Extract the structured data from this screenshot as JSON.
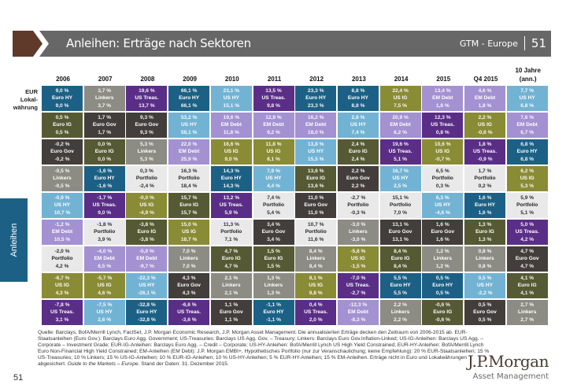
{
  "header": {
    "title": "Anleihen: Erträge nach Sektoren",
    "series_label": "GTM - Europe",
    "page": "51"
  },
  "side_tab": "Anleihen",
  "row_label": [
    "EUR",
    "Lokal-",
    "währung"
  ],
  "colors": {
    "Euro HY": "#1c6185",
    "Linkers": "#8c8c85",
    "US Treas.": "#5a2e86",
    "US HY": "#72b3d3",
    "Euro IG": "#565a34",
    "Euro Gov": "#433e3b",
    "EM Debt": "#a391d1",
    "US IG": "#8a8b35",
    "Portfolio": "#e9e9e9"
  },
  "chart_data": {
    "type": "table",
    "title": "Anleihen: Erträge nach Sektoren",
    "columns": [
      "2006",
      "2007",
      "2008",
      "2009",
      "2010",
      "2011",
      "2012",
      "2013",
      "2014",
      "2015",
      "Q4 2015",
      "10 Jahre (ann.)"
    ],
    "note": "Each cell: EUR return (top), sector, local-currency return (bottom). Columns ranked high to low by EUR return.",
    "cells": [
      [
        {
          "eur": "9,0 %",
          "sector": "Euro HY",
          "local": "9,0 %"
        },
        {
          "eur": "0,5 %",
          "sector": "Euro IG",
          "local": "0,5 %"
        },
        {
          "eur": "-0,2 %",
          "sector": "Euro Gov",
          "local": "-0,2 %"
        },
        {
          "eur": "-0,5 %",
          "sector": "Linkers",
          "local": "-0,5 %"
        },
        {
          "eur": "-0,9 %",
          "sector": "US HY",
          "local": "10,7 %"
        },
        {
          "eur": "-1,2 %",
          "sector": "EM Debt",
          "local": "10,5 %"
        },
        {
          "eur": "-2,0 %",
          "sector": "Portfolio",
          "local": "4,2 %"
        },
        {
          "eur": "-6,7 %",
          "sector": "US IG",
          "local": "4,3 %"
        },
        {
          "eur": "-7,8 %",
          "sector": "US Treas.",
          "local": "3,1 %"
        }
      ],
      [
        {
          "eur": "3,7 %",
          "sector": "Linkers",
          "local": "3,7 %"
        },
        {
          "eur": "1,7 %",
          "sector": "Euro Gov",
          "local": "1,7 %"
        },
        {
          "eur": "0,0 %",
          "sector": "Euro IG",
          "local": "0,0 %"
        },
        {
          "eur": "-1,6 %",
          "sector": "Euro HY",
          "local": "-1,6 %"
        },
        {
          "eur": "-1,7 %",
          "sector": "US Treas.",
          "local": "9,0 %"
        },
        {
          "eur": "-1,8 %",
          "sector": "Portfolio",
          "local": "3,9 %"
        },
        {
          "eur": "-4,0 %",
          "sector": "EM Debt",
          "local": "6,5 %"
        },
        {
          "eur": "-5,7 %",
          "sector": "US IG",
          "local": "4,6 %"
        },
        {
          "eur": "-7,5 %",
          "sector": "US HY",
          "local": "2,6 %"
        }
      ],
      [
        {
          "eur": "19,6 %",
          "sector": "US Treas.",
          "local": "13,7 %"
        },
        {
          "eur": "9,3 %",
          "sector": "Euro Gov",
          "local": "9,3 %"
        },
        {
          "eur": "5,3 %",
          "sector": "Linkers",
          "local": "5,3 %"
        },
        {
          "eur": "0,3 %",
          "sector": "Portfolio",
          "local": "-2,4 %"
        },
        {
          "eur": "-0,0 %",
          "sector": "US IG",
          "local": "-4,9 %"
        },
        {
          "eur": "-3,8 %",
          "sector": "Euro IG",
          "local": "-3,8 %"
        },
        {
          "eur": "-5,0 %",
          "sector": "EM Debt",
          "local": "-9,7 %"
        },
        {
          "eur": "-22,3 %",
          "sector": "US HY",
          "local": "-26,1 %"
        },
        {
          "eur": "-32,8 %",
          "sector": "Euro HY",
          "local": "-32,8 %"
        }
      ],
      [
        {
          "eur": "66,1 %",
          "sector": "Euro HY",
          "local": "66,1 %"
        },
        {
          "eur": "53,2 %",
          "sector": "US HY",
          "local": "58,1 %"
        },
        {
          "eur": "22,0 %",
          "sector": "EM Debt",
          "local": "25,9 %"
        },
        {
          "eur": "16,3 %",
          "sector": "Portfolio",
          "local": "18,4 %"
        },
        {
          "eur": "15,7 %",
          "sector": "Euro IG",
          "local": "15,7 %"
        },
        {
          "eur": "15,0 %",
          "sector": "US IG",
          "local": "18,7 %"
        },
        {
          "eur": "7,0 %",
          "sector": "Linkers",
          "local": "7,0 %"
        },
        {
          "eur": "4,3 %",
          "sector": "Euro Gov",
          "local": "4,3 %"
        },
        {
          "eur": "-6,6 %",
          "sector": "US Treas.",
          "local": "-3,6 %"
        }
      ],
      [
        {
          "eur": "23,1 %",
          "sector": "US HY",
          "local": "15,1 %"
        },
        {
          "eur": "19,6 %",
          "sector": "EM Debt",
          "local": "11,8 %"
        },
        {
          "eur": "16,6 %",
          "sector": "US IG",
          "local": "9,0 %"
        },
        {
          "eur": "14,3 %",
          "sector": "Euro HY",
          "local": "14,3 %"
        },
        {
          "eur": "13,2 %",
          "sector": "US Treas.",
          "local": "5,9 %"
        },
        {
          "eur": "11,3 %",
          "sector": "Portfolio",
          "local": "7,1 %"
        },
        {
          "eur": "4,7 %",
          "sector": "Euro IG",
          "local": "4,7 %"
        },
        {
          "eur": "2,1 %",
          "sector": "Linkers",
          "local": "2,1 %"
        },
        {
          "eur": "1,1 %",
          "sector": "Euro Gov",
          "local": "1,1 %"
        }
      ],
      [
        {
          "eur": "13,5 %",
          "sector": "US Treas.",
          "local": "9,8 %"
        },
        {
          "eur": "12,9 %",
          "sector": "EM Debt",
          "local": "9,2 %"
        },
        {
          "eur": "11,8 %",
          "sector": "US IG",
          "local": "8,1 %"
        },
        {
          "eur": "7,9 %",
          "sector": "US HY",
          "local": "4,4 %"
        },
        {
          "eur": "7,4 %",
          "sector": "Portfolio",
          "local": "5,4 %"
        },
        {
          "eur": "3,4 %",
          "sector": "Euro Gov",
          "local": "3,4 %"
        },
        {
          "eur": "1,5 %",
          "sector": "Euro IG",
          "local": "1,5 %"
        },
        {
          "eur": "1,3 %",
          "sector": "Linkers",
          "local": "1,3 %"
        },
        {
          "eur": "-1,1 %",
          "sector": "Euro HY",
          "local": "-1,1 %"
        }
      ],
      [
        {
          "eur": "23,3 %",
          "sector": "Euro HY",
          "local": "23,3 %"
        },
        {
          "eur": "16,2 %",
          "sector": "EM Debt",
          "local": "18,0 %"
        },
        {
          "eur": "13,8 %",
          "sector": "US HY",
          "local": "15,5 %"
        },
        {
          "eur": "13,6 %",
          "sector": "Euro IG",
          "local": "13,6 %"
        },
        {
          "eur": "11,0 %",
          "sector": "Euro Gov",
          "local": "11,0 %"
        },
        {
          "eur": "10,7 %",
          "sector": "Portfolio",
          "local": "11,6 %"
        },
        {
          "eur": "8,4 %",
          "sector": "Linkers",
          "local": "8,4 %"
        },
        {
          "eur": "8,1 %",
          "sector": "US IG",
          "local": "9,8 %"
        },
        {
          "eur": "0,4 %",
          "sector": "US Treas.",
          "local": "2,0 %"
        }
      ],
      [
        {
          "eur": "8,8 %",
          "sector": "Euro HY",
          "local": "8,8 %"
        },
        {
          "eur": "2,8 %",
          "sector": "US HY",
          "local": "7,4 %"
        },
        {
          "eur": "2,4 %",
          "sector": "Euro IG",
          "local": "2,4 %"
        },
        {
          "eur": "2,2 %",
          "sector": "Euro Gov",
          "local": "2,2 %"
        },
        {
          "eur": "-2,7 %",
          "sector": "Portfolio",
          "local": "-0,3 %"
        },
        {
          "eur": "-3,0 %",
          "sector": "Linkers",
          "local": "-3,0 %"
        },
        {
          "eur": "-5,8 %",
          "sector": "US IG",
          "local": "-1,5 %"
        },
        {
          "eur": "-7,0 %",
          "sector": "US Treas.",
          "local": "-2,7 %"
        },
        {
          "eur": "-12,3 %",
          "sector": "EM Debt",
          "local": "-8,3 %"
        }
      ],
      [
        {
          "eur": "22,4 %",
          "sector": "US IG",
          "local": "7,5 %"
        },
        {
          "eur": "20,9 %",
          "sector": "EM Debt",
          "local": "6,2 %"
        },
        {
          "eur": "19,6 %",
          "sector": "US Treas.",
          "local": "5,1 %"
        },
        {
          "eur": "16,7 %",
          "sector": "US HY",
          "local": "2,5 %"
        },
        {
          "eur": "15,1 %",
          "sector": "Portfolio",
          "local": "7,0 %"
        },
        {
          "eur": "13,1 %",
          "sector": "Euro Gov",
          "local": "13,1 %"
        },
        {
          "eur": "8,4 %",
          "sector": "Euro IG",
          "local": "8,4 %"
        },
        {
          "eur": "5,5 %",
          "sector": "Euro HY",
          "local": "5,5 %"
        },
        {
          "eur": "2,2 %",
          "sector": "Linkers",
          "local": "2,2 %"
        }
      ],
      [
        {
          "eur": "13,4 %",
          "sector": "EM Debt",
          "local": "1,8 %"
        },
        {
          "eur": "12,3 %",
          "sector": "US Treas.",
          "local": "0,8 %"
        },
        {
          "eur": "10,6 %",
          "sector": "US IG",
          "local": "-0,7 %"
        },
        {
          "eur": "6,5 %",
          "sector": "Portfolio",
          "local": "0,3 %"
        },
        {
          "eur": "6,3 %",
          "sector": "US HY",
          "local": "-4,6 %"
        },
        {
          "eur": "1,6 %",
          "sector": "Euro Gov",
          "local": "1,6 %"
        },
        {
          "eur": "1,2 %",
          "sector": "Linkers",
          "local": "1,2 %"
        },
        {
          "eur": "0,5 %",
          "sector": "Euro HY",
          "local": "0,5 %"
        },
        {
          "eur": "-0,6 %",
          "sector": "Euro IG",
          "local": "-0,6 %"
        }
      ],
      [
        {
          "eur": "4,6 %",
          "sector": "EM Debt",
          "local": "1,8 %"
        },
        {
          "eur": "2,2 %",
          "sector": "US IG",
          "local": "-0,6 %"
        },
        {
          "eur": "1,8 %",
          "sector": "US Treas.",
          "local": "-0,9 %"
        },
        {
          "eur": "1,7 %",
          "sector": "Portfolio",
          "local": "0,2 %"
        },
        {
          "eur": "1,6 %",
          "sector": "Euro HY",
          "local": "1,6 %"
        },
        {
          "eur": "1,3 %",
          "sector": "Euro IG",
          "local": "1,3 %"
        },
        {
          "eur": "0,8 %",
          "sector": "Linkers",
          "local": "0,8 %"
        },
        {
          "eur": "0,5 %",
          "sector": "US HY",
          "local": "-2,2 %"
        },
        {
          "eur": "0,5 %",
          "sector": "Euro Gov",
          "local": "0,5 %"
        }
      ],
      [
        {
          "eur": "7,7 %",
          "sector": "US HY",
          "local": "6,8 %"
        },
        {
          "eur": "7,6 %",
          "sector": "EM Debt",
          "local": "6,7 %"
        },
        {
          "eur": "6,8 %",
          "sector": "Euro HY",
          "local": "6,8 %"
        },
        {
          "eur": "6,2 %",
          "sector": "US IG",
          "local": "5,3 %"
        },
        {
          "eur": "5,9 %",
          "sector": "Portfolio",
          "local": "5,1 %"
        },
        {
          "eur": "5,0 %",
          "sector": "US Treas.",
          "local": "4,2 %"
        },
        {
          "eur": "4,7 %",
          "sector": "Euro Gov",
          "local": "4,7 %"
        },
        {
          "eur": "4,1 %",
          "sector": "Euro IG",
          "local": "4,1 %"
        },
        {
          "eur": "2,7 %",
          "sector": "Linkers",
          "local": "2,7 %"
        }
      ]
    ]
  },
  "footer": {
    "text_main": "Quelle: Barclays, BofA/Merrill Lynch, FactSet, J.P. Morgan Economic Research, J.P. Morgan Asset Management. Die annualisierten Erträge decken den Zeitraum von 2006-2015 ab. EUR-Staatsanleihen (Euro Gov.): Barclays Euro Agg. Government; US-Treasuries: Barclays US Agg. Gov. – Treasury; Linkers: Barclays Euro Gov.Inflation-Linked; US-IG-Anleihen: Barclays US Agg. – Corporate – Investment Grade; EUR-IG-Anleihen: Barclays Euro Agg. – Credit – Corporate; US-HY-Anleihen: BofA/Merrill Lynch US High Yield Constrained; EUR-HY-Anleihen: BofA/Merrill Lynch Euro Non-Financial High Yield Constrained; EM-Anleihen (EM Debt): J.P. Morgan EMBI+. Hypothetisches Portfolio (nur zur Veranschaulichung; keine Empfehlung): 20 % EUR-Staatsanleihen; 15 % US-Treasuries; 10 % Linkers; 15 % US-IG-Anleihen; 10 % EUR-IG-Anleihen; 10 % US-HY-Anleihen; 5 % EUR-HY-Anleihen; 15 % EM-Anleihen. Erträge nicht in Euro und Lokalwährungen abgesichert.",
    "text_italic": "Guide to the Markets – Europe.",
    "text_end": "Stand der Daten: 31. Dezember 2015.",
    "page_number": "51"
  },
  "brand": {
    "name": "J.P.Morgan",
    "sub": "Asset Management"
  }
}
